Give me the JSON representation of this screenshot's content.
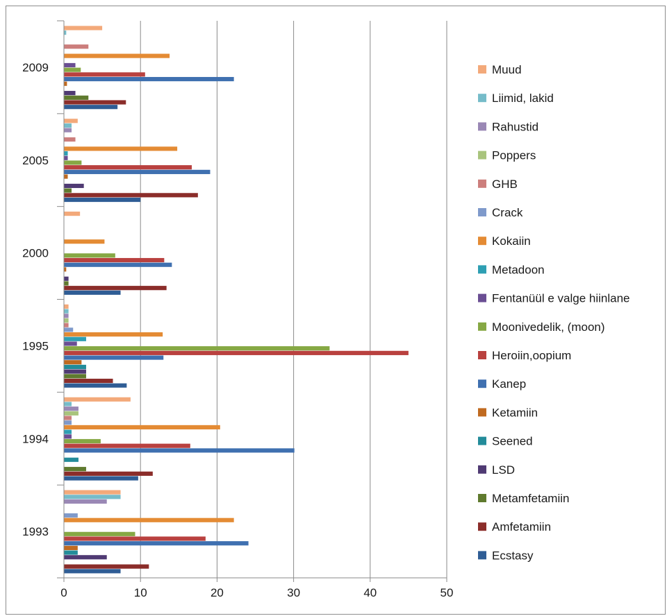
{
  "chart_data": {
    "type": "bar",
    "orientation": "horizontal",
    "title": "",
    "xlabel": "",
    "ylabel": "",
    "xlim": [
      0,
      50
    ],
    "x_ticks": [
      "0",
      "10",
      "20",
      "30",
      "40",
      "50"
    ],
    "grid": "vertical",
    "legend_position": "right",
    "categories": [
      "1993",
      "1994",
      "1995",
      "2000",
      "2005",
      "2009"
    ],
    "series": [
      {
        "name": "Ecstasy",
        "color": "#2f5d95",
        "values": [
          7.4,
          9.7,
          8.2,
          7.4,
          10.0,
          7.0
        ]
      },
      {
        "name": "Amfetamiin",
        "color": "#8b2d2a",
        "values": [
          11.1,
          11.6,
          6.4,
          13.4,
          17.5,
          8.1
        ]
      },
      {
        "name": "Metamfetamiin",
        "color": "#5f7a2e",
        "values": [
          0,
          2.9,
          2.9,
          0.6,
          1.0,
          3.2
        ]
      },
      {
        "name": "LSD",
        "color": "#4f3a73",
        "values": [
          5.6,
          0,
          2.9,
          0.6,
          2.6,
          1.5
        ]
      },
      {
        "name": "Seened",
        "color": "#238c9a",
        "values": [
          1.8,
          1.9,
          2.9,
          0,
          0,
          0
        ]
      },
      {
        "name": "Ketamiin",
        "color": "#c06a20",
        "values": [
          1.8,
          0,
          2.3,
          0.3,
          0.5,
          0.4
        ]
      },
      {
        "name": "Kanep",
        "color": "#3f70b0",
        "values": [
          24.1,
          30.1,
          13.0,
          14.1,
          19.1,
          22.2
        ]
      },
      {
        "name": "Heroiin,oopium",
        "color": "#b9413f",
        "values": [
          18.5,
          16.5,
          45.0,
          13.1,
          16.7,
          10.6
        ]
      },
      {
        "name": "Moonivedelik, (moon)",
        "color": "#86a844",
        "values": [
          9.3,
          4.8,
          34.7,
          6.7,
          2.3,
          2.2
        ]
      },
      {
        "name": "Fentanüül e valge hiinlane",
        "color": "#6a4e93",
        "values": [
          0,
          1.0,
          1.7,
          0,
          0.5,
          1.5
        ]
      },
      {
        "name": "Metadoon",
        "color": "#2e9fb3",
        "values": [
          0,
          1.0,
          2.9,
          0,
          0.5,
          0
        ]
      },
      {
        "name": "Kokaiin",
        "color": "#e48b34",
        "values": [
          22.2,
          20.4,
          12.9,
          5.3,
          14.8,
          13.8
        ]
      },
      {
        "name": "Crack",
        "color": "#7f9acb",
        "values": [
          1.8,
          1.0,
          1.2,
          0,
          0,
          0
        ]
      },
      {
        "name": "GHB",
        "color": "#cc7e7c",
        "values": [
          0,
          1.0,
          0.6,
          0,
          1.5,
          3.2
        ]
      },
      {
        "name": "Poppers",
        "color": "#a9c47d",
        "values": [
          0,
          1.9,
          0.6,
          0,
          0,
          0
        ]
      },
      {
        "name": "Rahustid",
        "color": "#9a88b5",
        "values": [
          5.6,
          1.9,
          0.6,
          0,
          1.0,
          0
        ]
      },
      {
        "name": "Liimid, lakid",
        "color": "#76bcc9",
        "values": [
          7.4,
          1.0,
          0.6,
          0,
          1.0,
          0.3
        ]
      },
      {
        "name": "Muud",
        "color": "#f3a97a",
        "values": [
          7.4,
          8.7,
          0.6,
          2.1,
          1.8,
          5.0
        ]
      }
    ]
  }
}
